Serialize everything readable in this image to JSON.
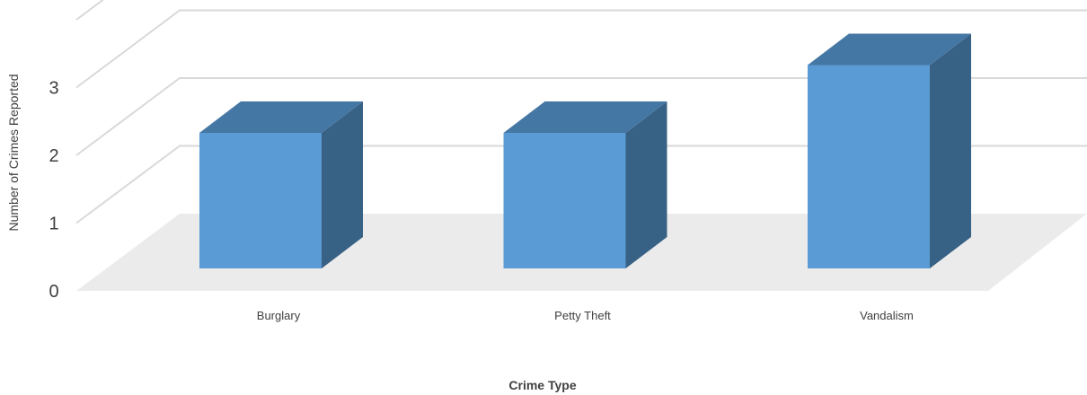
{
  "chart_data": {
    "type": "bar",
    "categories": [
      "Burglary",
      "Petty Theft",
      "Vandalism"
    ],
    "values": [
      2,
      2,
      3
    ],
    "title": "",
    "xlabel": "Crime Type",
    "ylabel": "Number of Crimes Reported",
    "yticks": [
      "0",
      "1",
      "2",
      "3"
    ],
    "ylim": [
      0,
      4
    ],
    "grid": true,
    "legend": "none",
    "three_d": true,
    "colors": {
      "bar_front": "#5b9bd5",
      "bar_top": "#4577a4",
      "bar_side": "#376185",
      "floor": "#ebebeb",
      "gridline": "#d9d9d9",
      "text": "#404040"
    }
  }
}
